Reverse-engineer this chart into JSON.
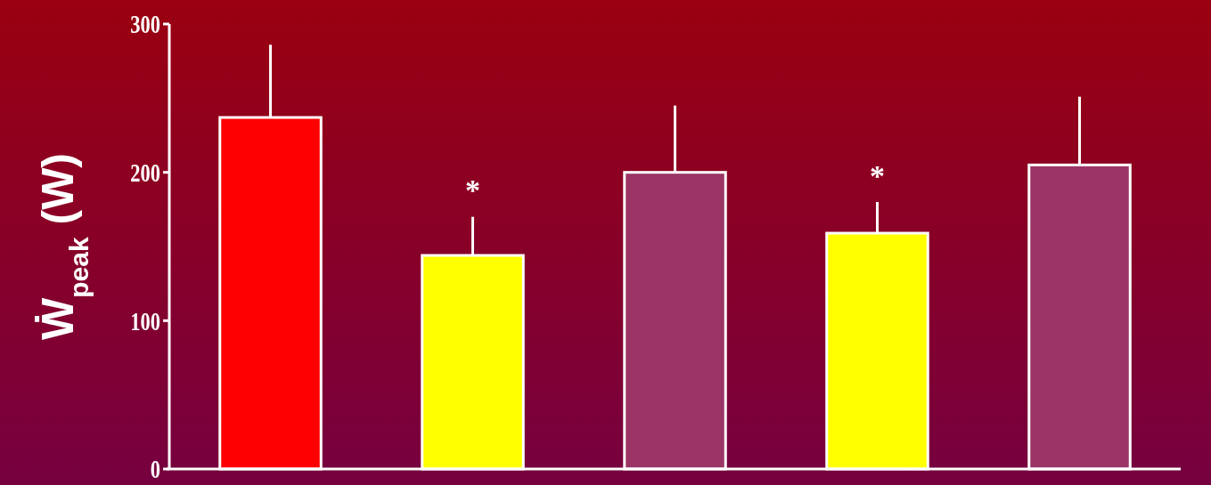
{
  "chart_data": {
    "type": "bar",
    "ylabel": "Ẇ$_{peak}$ (W)",
    "categories": [
      null,
      null,
      null,
      null,
      null
    ],
    "values": [
      237,
      144,
      200,
      159,
      205
    ],
    "colors": [
      "#ff0000",
      "#ffff00",
      "#9b3566",
      "#ffff00",
      "#9b3566"
    ],
    "errors": [
      [
        237,
        286
      ],
      [
        144,
        170
      ],
      [
        200,
        245
      ],
      [
        159,
        180
      ],
      [
        205,
        251
      ]
    ],
    "ylim": [
      0,
      300
    ],
    "yticks": [
      0,
      100,
      200,
      300
    ],
    "grid": false,
    "annotations": [
      "*",
      "*"
    ]
  }
}
